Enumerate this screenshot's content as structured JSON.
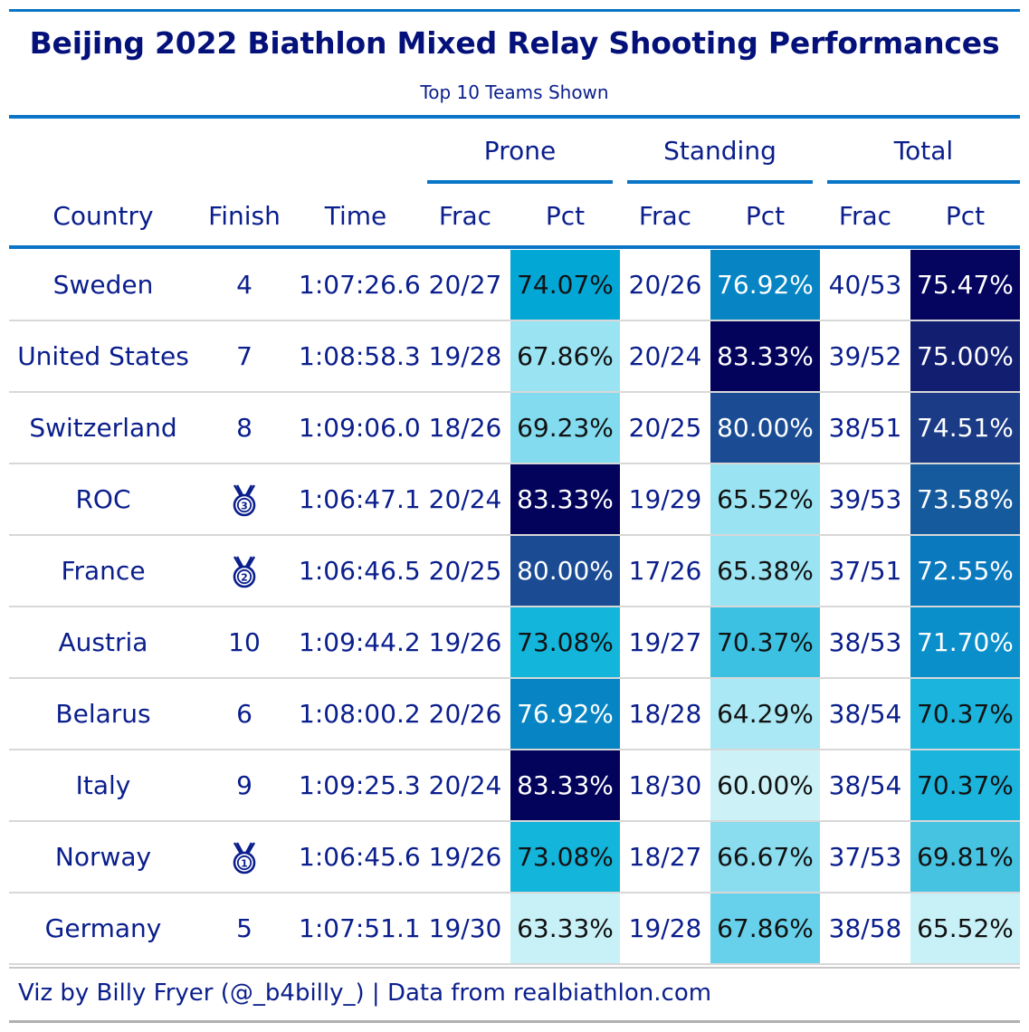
{
  "title": "Beijing 2022 Biathlon Mixed Relay Shooting Performances",
  "subtitle": "Top 10 Teams Shown",
  "spanners": {
    "prone": "Prone",
    "standing": "Standing",
    "total": "Total"
  },
  "columns": {
    "country": "Country",
    "finish": "Finish",
    "time": "Time",
    "prone_frac": "Frac",
    "prone_pct": "Pct",
    "standing_frac": "Frac",
    "standing_pct": "Pct",
    "total_frac": "Frac",
    "total_pct": "Pct"
  },
  "rows": [
    {
      "country": "Sweden",
      "finish": "4",
      "medal": null,
      "time": "1:07:26.6",
      "prone_frac": "20/27",
      "prone_pct": "74.07%",
      "prone_color": "#03a7d6",
      "prone_dark": false,
      "standing_frac": "20/26",
      "standing_pct": "76.92%",
      "standing_color": "#0684c3",
      "standing_dark": true,
      "total_frac": "40/53",
      "total_pct": "75.47%",
      "total_color": "#05045e",
      "total_dark": true
    },
    {
      "country": "United States",
      "finish": "7",
      "medal": null,
      "time": "1:08:58.3",
      "prone_frac": "19/28",
      "prone_pct": "67.86%",
      "prone_color": "#9ae3f2",
      "prone_dark": false,
      "standing_frac": "20/24",
      "standing_pct": "83.33%",
      "standing_color": "#03035c",
      "standing_dark": true,
      "total_frac": "39/52",
      "total_pct": "75.00%",
      "total_color": "#121f70",
      "total_dark": true
    },
    {
      "country": "Switzerland",
      "finish": "8",
      "medal": null,
      "time": "1:09:06.0",
      "prone_frac": "18/26",
      "prone_pct": "69.23%",
      "prone_color": "#83dbef",
      "prone_dark": false,
      "standing_frac": "20/25",
      "standing_pct": "80.00%",
      "standing_color": "#1a4b93",
      "standing_dark": true,
      "total_frac": "38/51",
      "total_pct": "74.51%",
      "total_color": "#1b3b86",
      "total_dark": true
    },
    {
      "country": "ROC",
      "finish": "",
      "medal": "3",
      "time": "1:06:47.1",
      "prone_frac": "20/24",
      "prone_pct": "83.33%",
      "prone_color": "#03035c",
      "prone_dark": true,
      "standing_frac": "19/29",
      "standing_pct": "65.52%",
      "standing_color": "#9ae3f2",
      "standing_dark": false,
      "total_frac": "39/53",
      "total_pct": "73.58%",
      "total_color": "#155a9d",
      "total_dark": true
    },
    {
      "country": "France",
      "finish": "",
      "medal": "2",
      "time": "1:06:46.5",
      "prone_frac": "20/25",
      "prone_pct": "80.00%",
      "prone_color": "#1a4b93",
      "prone_dark": true,
      "standing_frac": "17/26",
      "standing_pct": "65.38%",
      "standing_color": "#9ae3f2",
      "standing_dark": false,
      "total_frac": "37/51",
      "total_pct": "72.55%",
      "total_color": "#0a79bd",
      "total_dark": true
    },
    {
      "country": "Austria",
      "finish": "10",
      "medal": null,
      "time": "1:09:44.2",
      "prone_frac": "19/26",
      "prone_pct": "73.08%",
      "prone_color": "#13b5db",
      "prone_dark": false,
      "standing_frac": "19/27",
      "standing_pct": "70.37%",
      "standing_color": "#3cc1e2",
      "standing_dark": false,
      "total_frac": "38/53",
      "total_pct": "71.70%",
      "total_color": "#0a8fcb",
      "total_dark": true
    },
    {
      "country": "Belarus",
      "finish": "6",
      "medal": null,
      "time": "1:08:00.2",
      "prone_frac": "20/26",
      "prone_pct": "76.92%",
      "prone_color": "#0684c3",
      "prone_dark": true,
      "standing_frac": "18/28",
      "standing_pct": "64.29%",
      "standing_color": "#a9e8f4",
      "standing_dark": false,
      "total_frac": "38/54",
      "total_pct": "70.37%",
      "total_color": "#1bb4dc",
      "total_dark": false
    },
    {
      "country": "Italy",
      "finish": "9",
      "medal": null,
      "time": "1:09:25.3",
      "prone_frac": "20/24",
      "prone_pct": "83.33%",
      "prone_color": "#03035c",
      "prone_dark": true,
      "standing_frac": "18/30",
      "standing_pct": "60.00%",
      "standing_color": "#ccf2f8",
      "standing_dark": false,
      "total_frac": "38/54",
      "total_pct": "70.37%",
      "total_color": "#1bb4dc",
      "total_dark": false
    },
    {
      "country": "Norway",
      "finish": "",
      "medal": "1",
      "time": "1:06:45.6",
      "prone_frac": "19/26",
      "prone_pct": "73.08%",
      "prone_color": "#13b5db",
      "prone_dark": false,
      "standing_frac": "18/27",
      "standing_pct": "66.67%",
      "standing_color": "#8adcef",
      "standing_dark": false,
      "total_frac": "37/53",
      "total_pct": "69.81%",
      "total_color": "#47c3e2",
      "total_dark": false
    },
    {
      "country": "Germany",
      "finish": "5",
      "medal": null,
      "time": "1:07:51.1",
      "prone_frac": "19/30",
      "prone_pct": "63.33%",
      "prone_color": "#c8f0f7",
      "prone_dark": false,
      "standing_frac": "19/28",
      "standing_pct": "67.86%",
      "standing_color": "#67d0ea",
      "standing_dark": false,
      "total_frac": "38/58",
      "total_pct": "65.52%",
      "total_color": "#c8f0f7",
      "total_dark": false
    }
  ],
  "footer": "Viz by Billy Fryer (@_b4billy_) | Data from realbiathlon.com"
}
